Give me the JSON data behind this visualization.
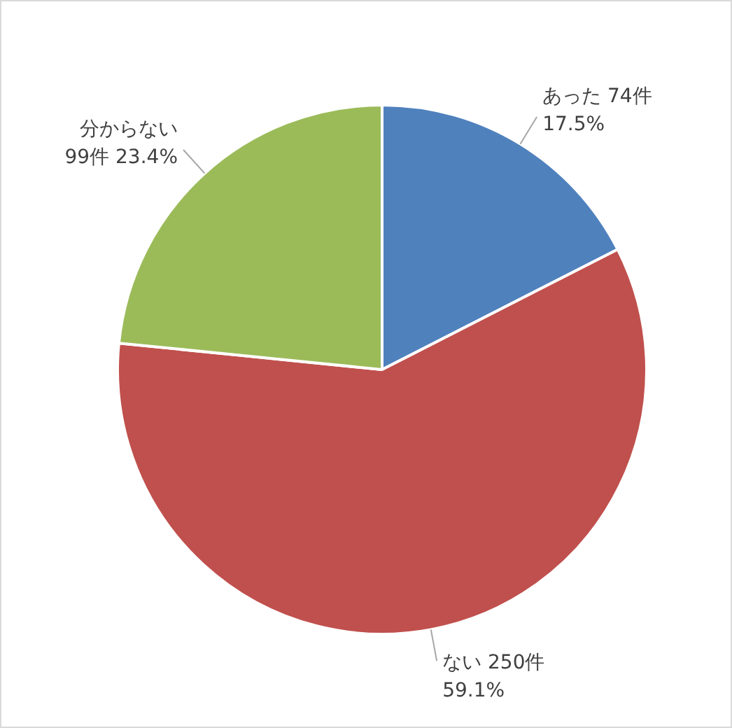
{
  "chart_data": {
    "type": "pie",
    "categories": [
      "あった",
      "ない",
      "分からない"
    ],
    "values": [
      74,
      250,
      99
    ],
    "colors": [
      "#4f81bd",
      "#c0504d",
      "#9bbb59"
    ],
    "value_labels": [
      "74件 17.5%",
      "250件 59.1%",
      "99件 23.4%"
    ],
    "legend": false
  }
}
